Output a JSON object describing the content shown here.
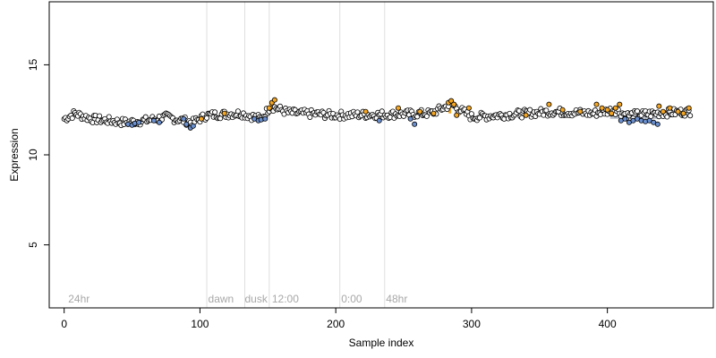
{
  "chart_data": {
    "type": "scatter",
    "title": "",
    "xlabel": "Sample index",
    "ylabel": "Expression",
    "xlim": [
      -11,
      478
    ],
    "ylim": [
      1.5,
      18.5
    ],
    "x_ticks": [
      0,
      100,
      200,
      300,
      400
    ],
    "y_ticks": [
      5,
      10,
      15
    ],
    "grid": false,
    "legend": "none",
    "phase_lines": [
      105,
      133,
      151,
      203,
      236
    ],
    "phase_labels": [
      {
        "x": 3,
        "text": "24hr"
      },
      {
        "x": 106,
        "text": "dawn"
      },
      {
        "x": 133,
        "text": "dusk"
      },
      {
        "x": 153,
        "text": "12:00"
      },
      {
        "x": 204,
        "text": "0:00"
      },
      {
        "x": 237,
        "text": "48hr"
      }
    ],
    "background_points": {
      "color": "#000000",
      "fill": "#ffffff",
      "n": 462,
      "baseline": 12.15,
      "profile": [
        {
          "x": 0,
          "y": 12.0
        },
        {
          "x": 8,
          "y": 12.3
        },
        {
          "x": 20,
          "y": 12.0
        },
        {
          "x": 45,
          "y": 11.8
        },
        {
          "x": 60,
          "y": 11.9
        },
        {
          "x": 75,
          "y": 12.1
        },
        {
          "x": 95,
          "y": 11.8
        },
        {
          "x": 105,
          "y": 12.2
        },
        {
          "x": 130,
          "y": 12.3
        },
        {
          "x": 145,
          "y": 12.0
        },
        {
          "x": 152,
          "y": 12.7
        },
        {
          "x": 165,
          "y": 12.35
        },
        {
          "x": 200,
          "y": 12.2
        },
        {
          "x": 240,
          "y": 12.25
        },
        {
          "x": 270,
          "y": 12.3
        },
        {
          "x": 285,
          "y": 12.8
        },
        {
          "x": 300,
          "y": 12.1
        },
        {
          "x": 360,
          "y": 12.4
        },
        {
          "x": 390,
          "y": 12.3
        },
        {
          "x": 405,
          "y": 12.5
        },
        {
          "x": 415,
          "y": 12.2
        },
        {
          "x": 435,
          "y": 12.3
        },
        {
          "x": 462,
          "y": 12.4
        }
      ]
    },
    "series": [
      {
        "name": "",
        "color": "#6a8fcf",
        "points": [
          {
            "x": 47,
            "y": 11.7
          },
          {
            "x": 50,
            "y": 11.65
          },
          {
            "x": 52,
            "y": 11.75
          },
          {
            "x": 55,
            "y": 11.8
          },
          {
            "x": 66,
            "y": 11.9
          },
          {
            "x": 70,
            "y": 11.8
          },
          {
            "x": 88,
            "y": 12.0
          },
          {
            "x": 90,
            "y": 11.7
          },
          {
            "x": 93,
            "y": 11.5
          },
          {
            "x": 95,
            "y": 11.6
          },
          {
            "x": 140,
            "y": 12.0
          },
          {
            "x": 143,
            "y": 11.9
          },
          {
            "x": 145,
            "y": 11.95
          },
          {
            "x": 148,
            "y": 12.0
          },
          {
            "x": 232,
            "y": 11.9
          },
          {
            "x": 255,
            "y": 12.0
          },
          {
            "x": 258,
            "y": 11.7
          },
          {
            "x": 410,
            "y": 11.9
          },
          {
            "x": 413,
            "y": 12.0
          },
          {
            "x": 416,
            "y": 11.8
          },
          {
            "x": 419,
            "y": 11.9
          },
          {
            "x": 422,
            "y": 12.0
          },
          {
            "x": 425,
            "y": 11.9
          },
          {
            "x": 428,
            "y": 11.85
          },
          {
            "x": 431,
            "y": 11.9
          },
          {
            "x": 434,
            "y": 11.8
          },
          {
            "x": 437,
            "y": 11.7
          }
        ]
      },
      {
        "name": "",
        "color": "#f5a623",
        "points": [
          {
            "x": 101,
            "y": 12.0
          },
          {
            "x": 118,
            "y": 12.3
          },
          {
            "x": 151,
            "y": 12.6
          },
          {
            "x": 153,
            "y": 12.9
          },
          {
            "x": 155,
            "y": 13.05
          },
          {
            "x": 222,
            "y": 12.4
          },
          {
            "x": 246,
            "y": 12.6
          },
          {
            "x": 262,
            "y": 12.4
          },
          {
            "x": 272,
            "y": 12.3
          },
          {
            "x": 283,
            "y": 12.9
          },
          {
            "x": 285,
            "y": 13.0
          },
          {
            "x": 287,
            "y": 12.8
          },
          {
            "x": 289,
            "y": 12.2
          },
          {
            "x": 298,
            "y": 12.6
          },
          {
            "x": 340,
            "y": 12.2
          },
          {
            "x": 357,
            "y": 12.8
          },
          {
            "x": 367,
            "y": 12.5
          },
          {
            "x": 380,
            "y": 12.4
          },
          {
            "x": 392,
            "y": 12.8
          },
          {
            "x": 396,
            "y": 12.6
          },
          {
            "x": 400,
            "y": 12.5
          },
          {
            "x": 403,
            "y": 12.3
          },
          {
            "x": 406,
            "y": 12.6
          },
          {
            "x": 409,
            "y": 12.8
          },
          {
            "x": 438,
            "y": 12.7
          },
          {
            "x": 441,
            "y": 12.4
          },
          {
            "x": 446,
            "y": 12.6
          },
          {
            "x": 452,
            "y": 12.4
          },
          {
            "x": 456,
            "y": 12.3
          },
          {
            "x": 460,
            "y": 12.6
          }
        ]
      }
    ],
    "bands": [
      {
        "x0": 402,
        "x1": 438,
        "y0": 12.0,
        "y1": 12.2,
        "color": "#b8bfc9"
      },
      {
        "x0": 440,
        "x1": 461,
        "y0": 12.25,
        "y1": 12.45,
        "color": "#b8bfc9"
      }
    ],
    "spikes": [
      {
        "x": 152,
        "y0": 12.3,
        "y1": 12.9,
        "color": "#f5a623"
      },
      {
        "x": 284,
        "y0": 12.3,
        "y1": 12.9,
        "color": "#f5a623"
      }
    ]
  }
}
